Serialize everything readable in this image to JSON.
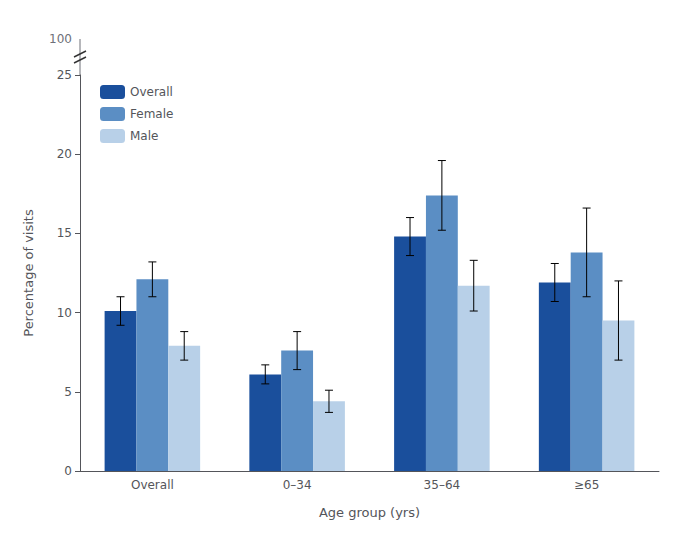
{
  "chart_data": {
    "type": "bar",
    "categories": [
      "Overall",
      "0–34",
      "35–64",
      "≥65"
    ],
    "series": [
      {
        "name": "Overall",
        "color": "#1a4f9c",
        "values": [
          10.1,
          6.1,
          14.8,
          11.9
        ],
        "errors": [
          0.9,
          0.6,
          1.2,
          1.2
        ]
      },
      {
        "name": "Female",
        "color": "#5b8ec4",
        "values": [
          12.1,
          7.6,
          17.4,
          13.8
        ],
        "errors": [
          1.1,
          1.2,
          2.2,
          2.8
        ]
      },
      {
        "name": "Male",
        "color": "#b8d0e8",
        "values": [
          7.9,
          4.4,
          11.7,
          9.5
        ],
        "errors": [
          0.9,
          0.7,
          1.6,
          2.5
        ]
      }
    ],
    "xlabel": "Age group (yrs)",
    "ylabel": "Percentage of visits",
    "ylim": [
      0,
      25
    ],
    "yticks": [
      0,
      5,
      10,
      15,
      20,
      25
    ],
    "grid": false,
    "legend": "upper left",
    "annotations": [
      "100"
    ]
  }
}
